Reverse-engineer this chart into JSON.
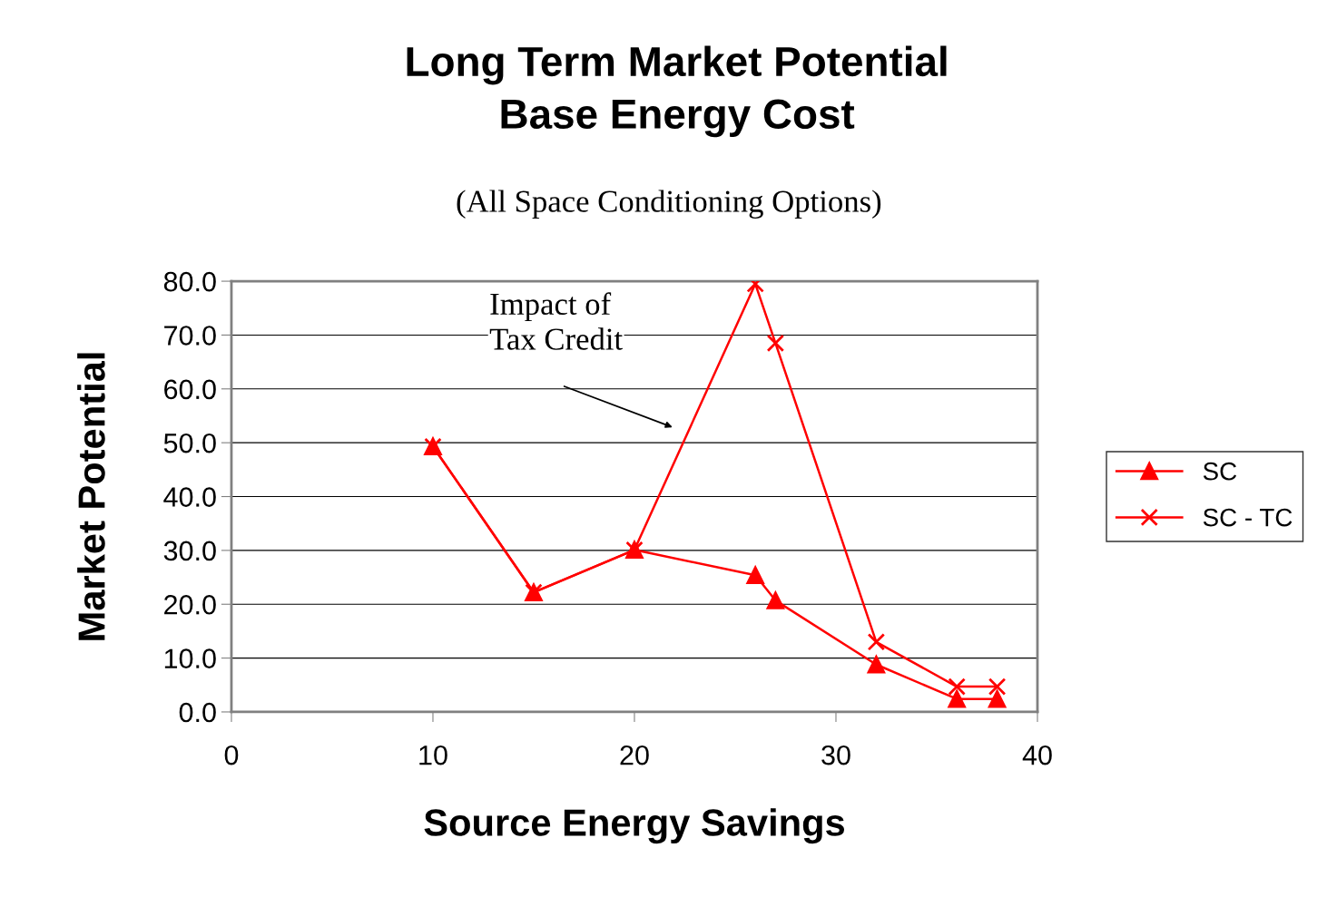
{
  "chart_data": {
    "type": "line",
    "title": "Long Term Market Potential\nBase Energy Cost",
    "subtitle": "(All Space Conditioning Options)",
    "xlabel": "Source Energy Savings",
    "ylabel": "Market Potential",
    "x": [
      10,
      15,
      20,
      26,
      27,
      32,
      36,
      38
    ],
    "series": [
      {
        "name": "SC",
        "color": "#ff0000",
        "marker": "triangle",
        "values": [
          49.3,
          22.2,
          30.1,
          25.4,
          20.7,
          8.8,
          2.4,
          2.4
        ]
      },
      {
        "name": "SC - TC",
        "color": "#ff0000",
        "marker": "cross",
        "values": [
          49.3,
          22.2,
          30.1,
          79.5,
          68.5,
          13.0,
          4.7,
          4.7
        ]
      }
    ],
    "xlim": [
      0,
      40
    ],
    "xticks": [
      0,
      10,
      20,
      30,
      40
    ],
    "ylim": [
      0,
      80
    ],
    "yticks": [
      {
        "value": 0,
        "label": "0.0"
      },
      {
        "value": 10,
        "label": "10.0"
      },
      {
        "value": 20,
        "label": "20.0"
      },
      {
        "value": 30,
        "label": "30.0"
      },
      {
        "value": 40,
        "label": "40.0"
      },
      {
        "value": 50,
        "label": "50.0"
      },
      {
        "value": 60,
        "label": "60.0"
      },
      {
        "value": 70,
        "label": "70.0"
      },
      {
        "value": 80,
        "label": "80.0"
      }
    ],
    "grid": "y",
    "legend": "right",
    "line_style": "solid",
    "annotations": [
      "Impact of\nTax Credit"
    ]
  }
}
